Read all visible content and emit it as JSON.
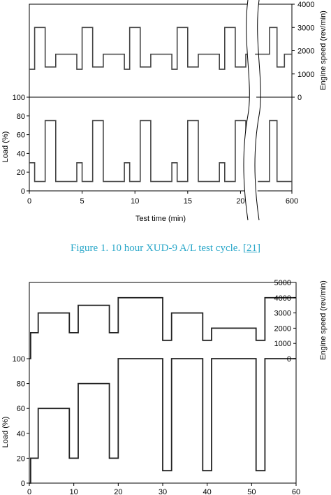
{
  "caption": {
    "prefix": "Figure 1.    10 hour XUD-9 A/L test cycle. [",
    "ref": "21",
    "suffix": "]"
  },
  "chart_data": [
    {
      "type": "line",
      "xlabel": "Test time (min)",
      "ylabel_left": "Load (%)",
      "ylabel_right": "Engine speed (rev/min)",
      "x_ticks": [
        "0",
        "5",
        "10",
        "15",
        "20",
        "600"
      ],
      "load_ticks": [
        "0",
        "20",
        "40",
        "60",
        "80",
        "100"
      ],
      "speed_ticks": [
        "0",
        "1000",
        "2000",
        "3000",
        "4000"
      ],
      "axis_break": true,
      "xlim": [
        0,
        25
      ],
      "series": [
        {
          "axis": "speed",
          "x": [
            0,
            0.5,
            0.5,
            1.5,
            1.5,
            2.5,
            2.5,
            4.5,
            4.5,
            5.0,
            5.0,
            6.0,
            6.0,
            7.0,
            7.0,
            9.0,
            9.0,
            9.5,
            9.5,
            10.5,
            10.5,
            11.5,
            11.5,
            13.5,
            13.5,
            14.0,
            14.0,
            15.0,
            15.0,
            16.0,
            16.0,
            18.0,
            18.0,
            18.5,
            18.5,
            19.5,
            19.5,
            20.5,
            20.5,
            22.0,
            22.0,
            23.0,
            23.0,
            24.0,
            24.0,
            25.0
          ],
          "y": [
            1200,
            1200,
            3000,
            3000,
            1300,
            1300,
            1850,
            1850,
            1200,
            1200,
            3000,
            3000,
            1300,
            1300,
            1850,
            1850,
            1200,
            1200,
            3000,
            3000,
            1300,
            1300,
            1850,
            1850,
            1200,
            1200,
            3000,
            3000,
            1300,
            1300,
            1850,
            1850,
            1200,
            1200,
            3000,
            3000,
            1300,
            1300,
            1850,
            1850,
            3000,
            3000,
            1300,
            1300,
            1850,
            1850
          ]
        },
        {
          "axis": "load",
          "x": [
            0,
            0.5,
            0.5,
            1.5,
            1.5,
            2.5,
            2.5,
            4.5,
            4.5,
            5.0,
            5.0,
            6.0,
            6.0,
            7.0,
            7.0,
            9.0,
            9.0,
            9.5,
            9.5,
            10.5,
            10.5,
            11.5,
            11.5,
            13.5,
            13.5,
            14.0,
            14.0,
            15.0,
            15.0,
            16.0,
            16.0,
            18.0,
            18.0,
            18.5,
            18.5,
            19.5,
            19.5,
            20.5,
            20.5,
            22.0,
            22.0,
            23.0,
            23.0,
            24.0,
            24.0,
            25.0
          ],
          "y": [
            30,
            30,
            10,
            10,
            75,
            75,
            10,
            10,
            30,
            30,
            10,
            10,
            75,
            75,
            10,
            10,
            30,
            30,
            10,
            10,
            75,
            75,
            10,
            10,
            30,
            30,
            10,
            10,
            75,
            75,
            10,
            10,
            30,
            30,
            10,
            10,
            75,
            75,
            10,
            10,
            75,
            75,
            10,
            10,
            10,
            10
          ]
        }
      ]
    },
    {
      "type": "line",
      "xlabel": "",
      "ylabel_left": "Load (%)",
      "ylabel_right": "Engine speed (rev/min)",
      "x_ticks": [
        "0",
        "10",
        "20",
        "30",
        "40",
        "50",
        "60"
      ],
      "load_ticks": [
        "0",
        "20",
        "40",
        "60",
        "80",
        "100"
      ],
      "speed_ticks": [
        "0",
        "1000",
        "2000",
        "3000",
        "4000",
        "5000"
      ],
      "xlim": [
        0,
        60
      ],
      "series": [
        {
          "axis": "speed",
          "x": [
            0,
            0.3,
            0.3,
            2,
            2,
            9,
            9,
            11,
            11,
            18,
            18,
            20,
            20,
            30,
            30,
            32,
            32,
            39,
            39,
            41,
            41,
            51,
            51,
            53,
            53,
            60
          ],
          "y": [
            0,
            0,
            1700,
            1700,
            3000,
            3000,
            1700,
            1700,
            3500,
            3500,
            1700,
            1700,
            4000,
            4000,
            1200,
            1200,
            3000,
            3000,
            1200,
            1200,
            2000,
            2000,
            1200,
            1200,
            4000,
            4000
          ]
        },
        {
          "axis": "load",
          "x": [
            0,
            0.3,
            0.3,
            2,
            2,
            9,
            9,
            11,
            11,
            18,
            18,
            20,
            20,
            30,
            30,
            32,
            32,
            39,
            39,
            41,
            41,
            51,
            51,
            53,
            53,
            60
          ],
          "y": [
            0,
            0,
            20,
            20,
            60,
            60,
            20,
            20,
            80,
            80,
            20,
            20,
            100,
            100,
            10,
            10,
            100,
            100,
            10,
            10,
            100,
            100,
            10,
            10,
            100,
            100
          ]
        }
      ]
    }
  ]
}
